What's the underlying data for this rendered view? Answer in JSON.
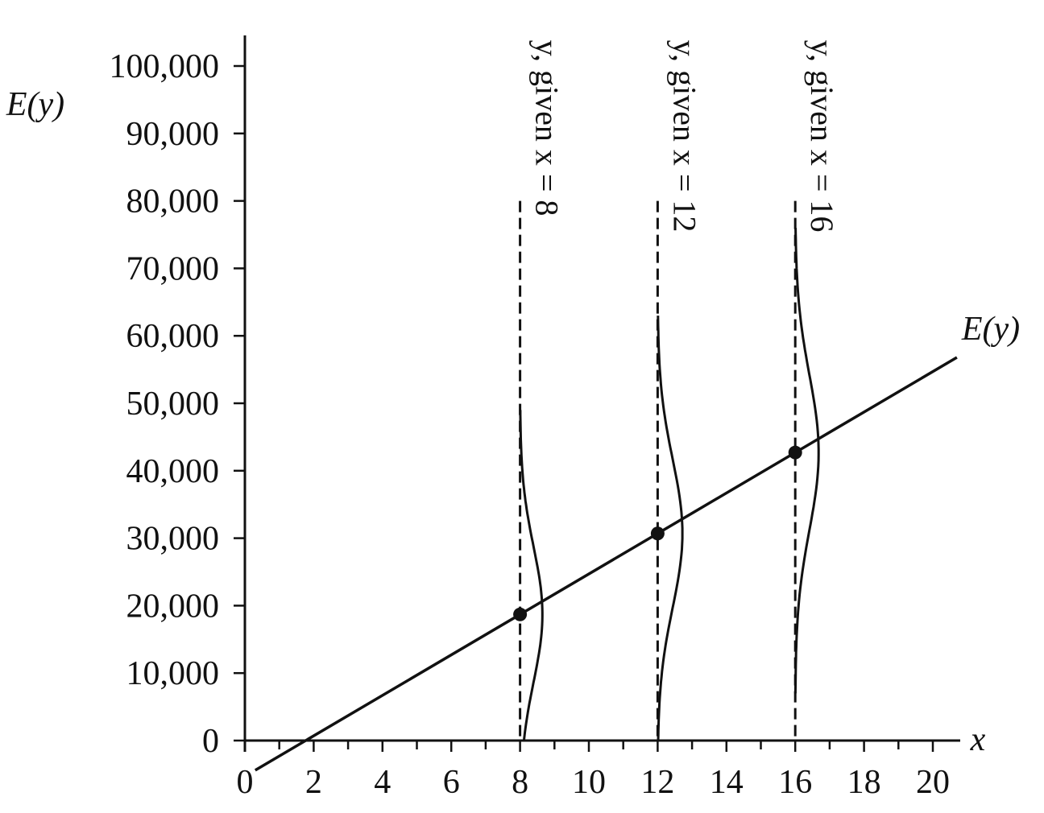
{
  "chart_data": {
    "type": "line",
    "ylabel": "E(y)",
    "xlabel": "x",
    "xlim": [
      0,
      20
    ],
    "ylim": [
      0,
      100000
    ],
    "x_ticks": [
      0,
      2,
      4,
      6,
      8,
      10,
      12,
      14,
      16,
      18,
      20
    ],
    "x_tick_labels": [
      "0",
      "2",
      "4",
      "6",
      "8",
      "10",
      "12",
      "14",
      "16",
      "18",
      "20"
    ],
    "y_ticks": [
      0,
      10000,
      20000,
      30000,
      40000,
      50000,
      60000,
      70000,
      80000,
      90000,
      100000
    ],
    "y_tick_labels": [
      "0",
      "10,000",
      "20,000",
      "30,000",
      "40,000",
      "50,000",
      "60,000",
      "70,000",
      "80,000",
      "90,000",
      "100,000"
    ],
    "regression_line": {
      "label": "E(y)",
      "x_start": 0.3,
      "x_end": 20.7,
      "intercept": -5300,
      "slope": 3000
    },
    "points": [
      {
        "x": 8,
        "y": 18700
      },
      {
        "x": 12,
        "y": 30700
      },
      {
        "x": 16,
        "y": 42700
      }
    ],
    "conditional_distributions": [
      {
        "x": 8,
        "mean": 18700,
        "sd": 10000,
        "peak_width": 0.65,
        "y_top": 80000,
        "curve_top": 49000,
        "curve_bottom": 0,
        "label": "y, given x = 8"
      },
      {
        "x": 12,
        "mean": 30700,
        "sd": 11000,
        "peak_width": 0.72,
        "y_top": 80000,
        "curve_top": 63000,
        "curve_bottom": 0,
        "label": "y, given x = 12"
      },
      {
        "x": 16,
        "mean": 42700,
        "sd": 11500,
        "peak_width": 0.68,
        "y_top": 80000,
        "curve_top": 76000,
        "curve_bottom": 7000,
        "label": "y, given x = 16"
      }
    ]
  }
}
